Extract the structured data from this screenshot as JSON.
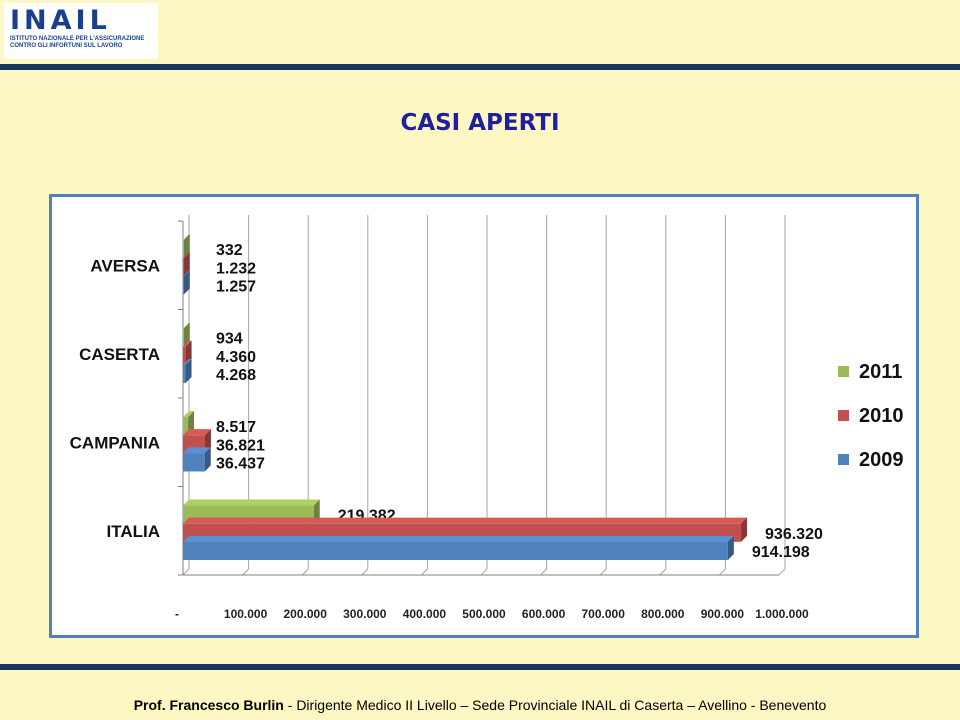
{
  "header": {
    "logo_text": "INAIL",
    "logo_line1": "ISTITUTO NAZIONALE PER L'ASSICURAZIONE",
    "logo_line2": "CONTRO GLI INFORTUNI SUL LAVORO"
  },
  "page_title": "CASI APERTI",
  "footer": {
    "name": "Prof. Francesco Burlin",
    "rest": " - Dirigente Medico II Livello – Sede Provinciale INAIL di Caserta – Avellino - Benevento"
  },
  "chart_data": {
    "type": "bar",
    "orientation": "horizontal",
    "title": "",
    "categories": [
      "AVERSA",
      "CASERTA",
      "CAMPANIA",
      "ITALIA"
    ],
    "series": [
      {
        "name": "2011",
        "color": "#9bbb59",
        "values": [
          332,
          934,
          8517,
          219382
        ],
        "labels": [
          "332",
          "934",
          "8.517",
          "219.382"
        ]
      },
      {
        "name": "2010",
        "color": "#c0504d",
        "values": [
          1232,
          4360,
          36821,
          936320
        ],
        "labels": [
          "1.232",
          "4.360",
          "36.821",
          "936.320"
        ]
      },
      {
        "name": "2009",
        "color": "#4f81bd",
        "values": [
          1257,
          4268,
          36437,
          914198
        ],
        "labels": [
          "1.257",
          "4.268",
          "36.437",
          "914.198"
        ]
      }
    ],
    "x_ticks": [
      0,
      100000,
      200000,
      300000,
      400000,
      500000,
      600000,
      700000,
      800000,
      900000,
      1000000
    ],
    "x_tick_labels": [
      "-",
      "100.000",
      "200.000",
      "300.000",
      "400.000",
      "500.000",
      "600.000",
      "700.000",
      "800.000",
      "900.000",
      "1.000.000"
    ],
    "xlim": [
      0,
      1000000
    ],
    "grid": true,
    "legend": [
      "2011",
      "2010",
      "2009"
    ],
    "legend_position": "right"
  }
}
